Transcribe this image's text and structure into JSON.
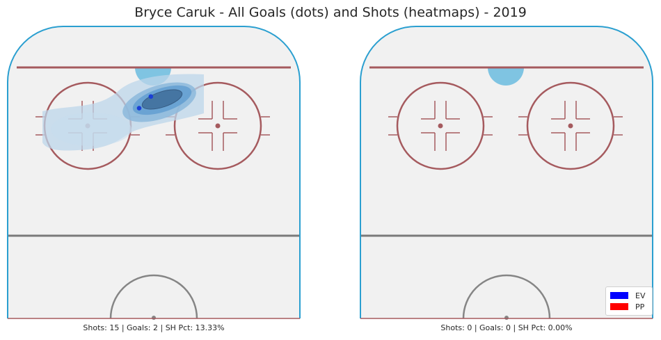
{
  "chart_data": {
    "type": "scatter",
    "title": "Bryce Caruk - All Goals (dots) and Shots (heatmaps) - 2019",
    "panels": [
      {
        "caption": "Shots: 15 | Goals: 2 | SH Pct: 13.33%",
        "goals": [
          {
            "strength": "EV",
            "x": 0.49,
            "y": 0.24
          },
          {
            "strength": "EV",
            "x": 0.45,
            "y": 0.28
          }
        ],
        "shot_density": "present"
      },
      {
        "caption": "Shots: 0 | Goals: 0 | SH Pct: 0.00%",
        "goals": [],
        "shot_density": "none"
      }
    ],
    "legend": {
      "placement": "lower-right",
      "entries": [
        {
          "label": "EV",
          "color": "#0000ff"
        },
        {
          "label": "PP",
          "color": "#ff0000"
        }
      ]
    }
  },
  "colors": {
    "boards": "#2a9fd0",
    "red_line": "#a55a5e",
    "blue_line": "#7a7a7a",
    "crease": "#7fc4e2",
    "ice": "#f1f1f1",
    "heat": "#4a8fc4",
    "goal_dot": "#1a3fd6"
  }
}
